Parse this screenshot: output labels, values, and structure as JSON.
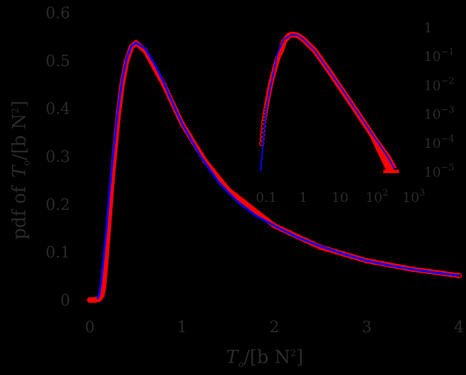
{
  "chart_data": [
    {
      "type": "line",
      "title": "",
      "xlabel": "T_o / [b N^2]",
      "ylabel": "pdf of T_o / [b N^2]",
      "xlim": [
        0,
        4
      ],
      "ylim": [
        0,
        0.6
      ],
      "xticks": [
        "0",
        "1",
        "2",
        "3",
        "4"
      ],
      "yticks": [
        "0",
        "0.1",
        "0.2",
        "0.3",
        "0.4",
        "0.5",
        "0.6"
      ],
      "grid": false,
      "legend": null,
      "series": [
        {
          "name": "simulation (red circles)",
          "color": "#ff0000",
          "marker": "circle",
          "x": [
            0.0,
            0.05,
            0.1,
            0.13,
            0.15,
            0.17,
            0.19,
            0.21,
            0.23,
            0.25,
            0.27,
            0.29,
            0.31,
            0.33,
            0.35,
            0.37,
            0.4,
            0.45,
            0.5,
            0.6,
            0.8,
            1.0,
            1.25,
            1.5,
            2.0,
            2.5,
            3.0,
            3.5,
            4.0
          ],
          "values": [
            0.0,
            0.0,
            0.002,
            0.01,
            0.03,
            0.07,
            0.12,
            0.17,
            0.22,
            0.27,
            0.31,
            0.35,
            0.39,
            0.42,
            0.45,
            0.47,
            0.5,
            0.528,
            0.537,
            0.52,
            0.45,
            0.368,
            0.29,
            0.23,
            0.155,
            0.11,
            0.082,
            0.064,
            0.051
          ]
        },
        {
          "name": "theory (blue line)",
          "color": "#0000ff",
          "marker": "none",
          "x": [
            0.08,
            0.1,
            0.12,
            0.15,
            0.18,
            0.2,
            0.25,
            0.3,
            0.35,
            0.4,
            0.45,
            0.5,
            0.6,
            0.7,
            0.8,
            0.9,
            1.0,
            1.2,
            1.4,
            1.6,
            1.8,
            2.0,
            2.25,
            2.5,
            2.75,
            3.0,
            3.25,
            3.5,
            3.75,
            4.0
          ],
          "values": [
            0.002,
            0.01,
            0.035,
            0.09,
            0.15,
            0.2,
            0.3,
            0.39,
            0.46,
            0.505,
            0.53,
            0.537,
            0.525,
            0.493,
            0.455,
            0.41,
            0.368,
            0.3,
            0.245,
            0.205,
            0.176,
            0.155,
            0.131,
            0.112,
            0.096,
            0.082,
            0.072,
            0.064,
            0.057,
            0.051
          ]
        }
      ]
    },
    {
      "type": "line",
      "title": "inset (log-log)",
      "xscale": "log",
      "yscale": "log",
      "xlim": [
        0.07,
        1000
      ],
      "ylim": [
        1e-05,
        1
      ],
      "xticks": [
        "0.1",
        "1",
        "10",
        "10^2",
        "10^3"
      ],
      "yticks": [
        "1",
        "10^-1",
        "10^-2",
        "10^-3",
        "10^-4",
        "10^-5"
      ],
      "series": [
        {
          "name": "simulation (red circles)",
          "color": "#ff0000",
          "x": [
            0.075,
            0.085,
            0.1,
            0.115,
            0.13,
            0.15,
            0.17,
            0.19,
            0.21,
            0.25,
            0.3,
            0.4,
            0.5,
            0.7,
            1,
            2,
            5,
            10,
            20,
            50,
            100,
            200,
            300
          ],
          "values": [
            9e-05,
            0.0005,
            0.0018,
            0.0045,
            0.01,
            0.02,
            0.036,
            0.06,
            0.09,
            0.14,
            0.3,
            0.48,
            0.537,
            0.5,
            0.368,
            0.155,
            0.03,
            0.008,
            0.0022,
            0.00038,
            0.0001,
            3e-05,
            1.2e-05
          ]
        },
        {
          "name": "theory (blue line)",
          "color": "#0000ff",
          "x": [
            0.07,
            0.1,
            0.15,
            0.2,
            0.3,
            0.5,
            0.7,
            1,
            2,
            5,
            10,
            20,
            50,
            100,
            200,
            300
          ],
          "values": [
            1e-05,
            0.0016,
            0.02,
            0.12,
            0.36,
            0.537,
            0.5,
            0.368,
            0.155,
            0.03,
            0.0085,
            0.0023,
            0.0004,
            0.00011,
            3e-05,
            1.2e-05
          ]
        }
      ]
    }
  ],
  "labels": {
    "y_axis_prefix": "pdf of",
    "axis_T": "T",
    "axis_T_sub": "o",
    "axis_unit": "/[b N",
    "axis_unit_sup": "2",
    "axis_unit_close": "]"
  },
  "colors": {
    "background": "#000000",
    "text": "#2a2a2a",
    "simulation": "#ff0000",
    "theory": "#0000ff"
  }
}
